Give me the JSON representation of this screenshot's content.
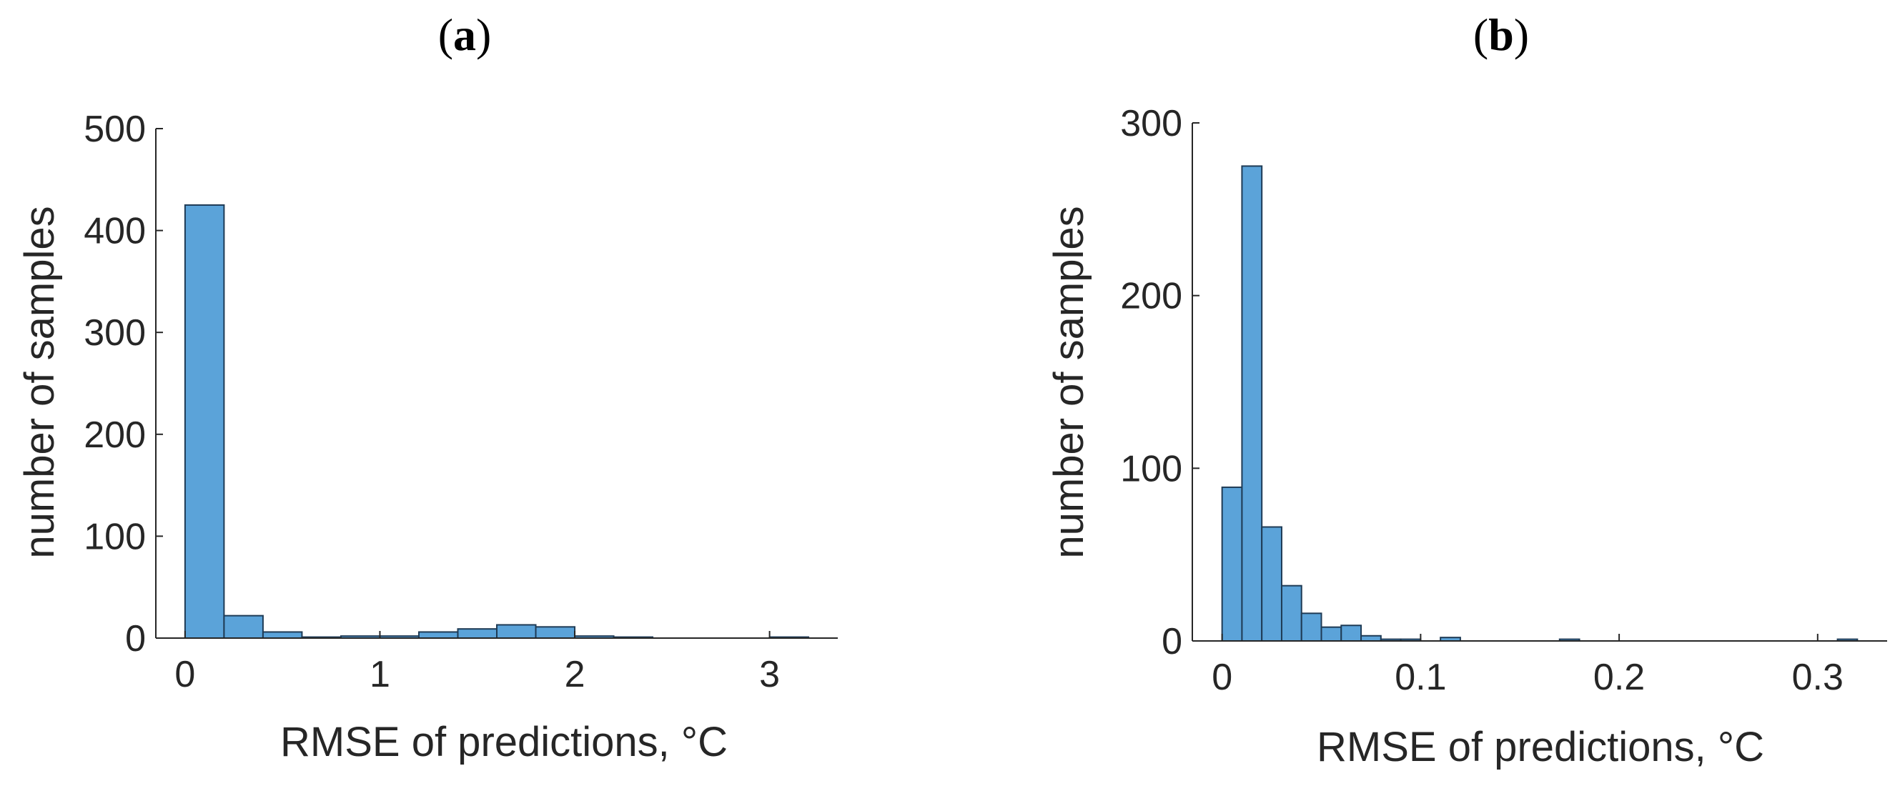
{
  "chart_data": [
    {
      "type": "bar",
      "panel_label": "a",
      "xlabel": "RMSE of predictions, °C",
      "ylabel": "number of samples",
      "xlim": [
        -0.15,
        3.35
      ],
      "ylim": [
        0,
        500
      ],
      "xticks": [
        0,
        1,
        2,
        3
      ],
      "yticks": [
        0,
        100,
        200,
        300,
        400,
        500
      ],
      "bin_edges": [
        0,
        0.2,
        0.4,
        0.6,
        0.8,
        1.0,
        1.2,
        1.4,
        1.6,
        1.8,
        2.0,
        2.2,
        2.4,
        2.6,
        2.8,
        3.0,
        3.2
      ],
      "values": [
        425,
        22,
        6,
        1,
        2,
        2,
        6,
        9,
        13,
        11,
        2,
        1,
        0,
        0,
        0,
        1
      ],
      "bar_color": "#5ba3d9",
      "edge_color": "#1f3b55"
    },
    {
      "type": "bar",
      "panel_label": "b",
      "xlabel": "RMSE of predictions, °C",
      "ylabel": "number of samples",
      "xlim": [
        -0.015,
        0.335
      ],
      "ylim": [
        0,
        300
      ],
      "xticks": [
        0,
        0.1,
        0.2,
        0.3
      ],
      "yticks": [
        0,
        100,
        200,
        300
      ],
      "bin_edges": [
        0,
        0.01,
        0.02,
        0.03,
        0.04,
        0.05,
        0.06,
        0.07,
        0.08,
        0.09,
        0.1,
        0.11,
        0.12,
        0.13,
        0.14,
        0.15,
        0.16,
        0.17,
        0.18,
        0.19,
        0.2,
        0.21,
        0.22,
        0.23,
        0.24,
        0.25,
        0.26,
        0.27,
        0.28,
        0.29,
        0.3,
        0.31,
        0.32
      ],
      "values": [
        89,
        275,
        66,
        32,
        16,
        8,
        9,
        3,
        1,
        1,
        0,
        2,
        0,
        0,
        0,
        0,
        0,
        1,
        0,
        0,
        0,
        0,
        0,
        0,
        0,
        0,
        0,
        0,
        0,
        0,
        0,
        1
      ],
      "bar_color": "#5ba3d9",
      "edge_color": "#1f3b55"
    }
  ]
}
